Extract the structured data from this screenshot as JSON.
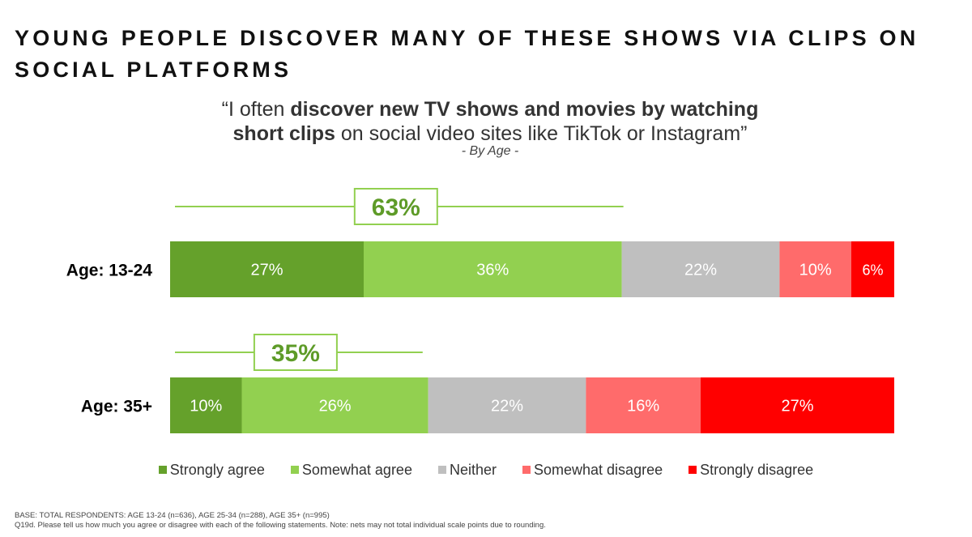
{
  "title": "YOUNG PEOPLE DISCOVER MANY OF THESE SHOWS VIA CLIPS ON SOCIAL PLATFORMS",
  "quote": {
    "open": "“I often ",
    "bold1": "discover new TV shows and movies by watching",
    "bold2": "short clips",
    "rest": " on social video sites like TikTok or Instagram”"
  },
  "subtitle": "- By Age -",
  "colors": {
    "strongly_agree": "#65a12b",
    "somewhat_agree": "#92d050",
    "neither": "#bfbfbf",
    "somewhat_disagree": "#ff6b6b",
    "strongly_disagree": "#ff0000",
    "net_bracket": "#92d050",
    "net_text": "#5e9b28"
  },
  "chart_data": {
    "type": "bar",
    "orientation": "horizontal",
    "stacked": true,
    "xlim": [
      0,
      101
    ],
    "categories": [
      "Age: 13-24",
      "Age: 35+"
    ],
    "series": [
      {
        "name": "Strongly agree",
        "values": [
          27,
          10
        ],
        "labels": [
          "27%",
          "10%"
        ]
      },
      {
        "name": "Somewhat agree",
        "values": [
          36,
          26
        ],
        "labels": [
          "36%",
          "26%"
        ]
      },
      {
        "name": "Neither",
        "values": [
          22,
          22
        ],
        "labels": [
          "22%",
          "22%"
        ]
      },
      {
        "name": "Somewhat disagree",
        "values": [
          10,
          16
        ],
        "labels": [
          "10%",
          "16%"
        ]
      },
      {
        "name": "Strongly disagree",
        "values": [
          6,
          27
        ],
        "labels": [
          "6%",
          "27%"
        ]
      }
    ],
    "nets": [
      {
        "category": "Age: 13-24",
        "value": 63,
        "label": "63%"
      },
      {
        "category": "Age: 35+",
        "value": 35,
        "label": "35%"
      }
    ],
    "legend_position": "bottom"
  },
  "footnote": {
    "line1": "BASE: TOTAL RESPONDENTS: AGE 13-24 (n=636), AGE 25-34 (n=288), AGE 35+ (n=995)",
    "line2": "Q19d. Please tell us how much you agree or disagree with each of the following statements.  Note: nets may not total individual scale points due to rounding."
  }
}
